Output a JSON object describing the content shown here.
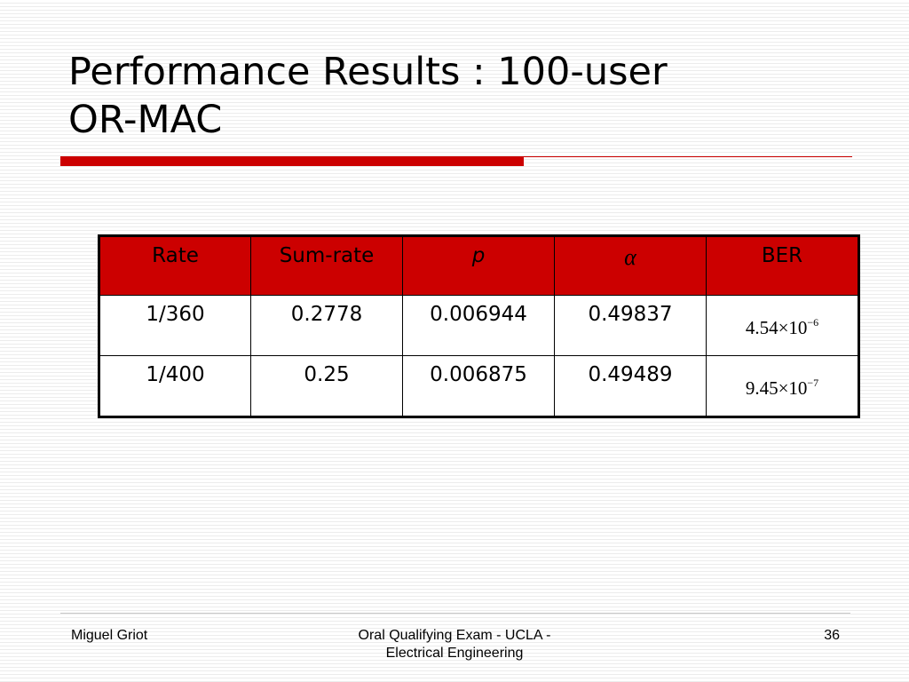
{
  "slide": {
    "title_line1": "Performance Results : 100-user",
    "title_line2": "OR-MAC",
    "accent_color": "#cc0000"
  },
  "table": {
    "headers": {
      "rate": "Rate",
      "sum_rate": "Sum-rate",
      "p": "p",
      "alpha": "α",
      "ber": "BER"
    },
    "rows": [
      {
        "rate": "1/360",
        "sum_rate": "0.2778",
        "p": "0.006944",
        "alpha": "0.49837",
        "ber_mantissa": "4.54×10",
        "ber_exponent": "−6"
      },
      {
        "rate": "1/400",
        "sum_rate": "0.25",
        "p": "0.006875",
        "alpha": "0.49489",
        "ber_mantissa": "9.45×10",
        "ber_exponent": "−7"
      }
    ]
  },
  "footer": {
    "author": "Miguel Griot",
    "event_line1": "Oral Qualifying Exam - UCLA -",
    "event_line2": "Electrical Engineering",
    "page_number": "36"
  }
}
